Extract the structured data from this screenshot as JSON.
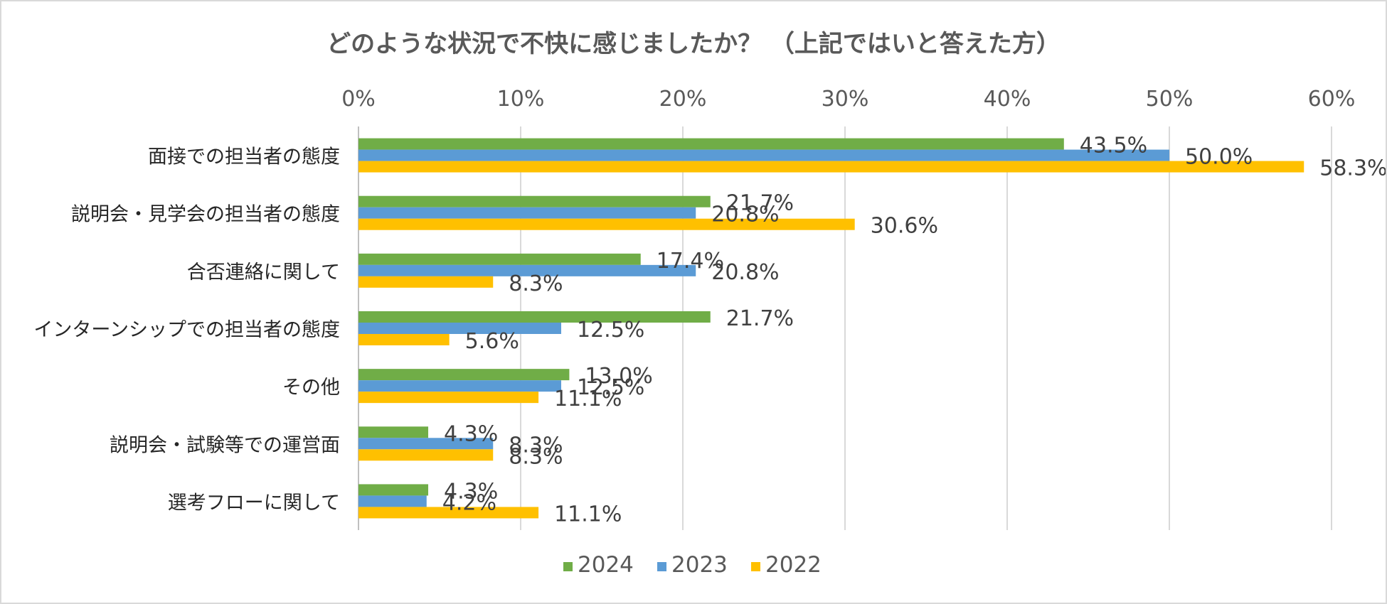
{
  "chart_data": {
    "type": "bar",
    "orientation": "horizontal",
    "title": "どのような状況で不快に感じましたか？ （上記ではいと答えた方）",
    "categories": [
      "面接での担当者の態度",
      "説明会・見学会の担当者の態度",
      "合否連絡に関して",
      "インターンシップでの担当者の態度",
      "その他",
      "説明会・試験等での運営面",
      "選考フローに関して"
    ],
    "series": [
      {
        "name": "2024",
        "color": "#70ad47",
        "values": [
          43.5,
          21.7,
          17.4,
          21.7,
          13.0,
          4.3,
          4.3
        ]
      },
      {
        "name": "2023",
        "color": "#5b9bd5",
        "values": [
          50.0,
          20.8,
          20.8,
          12.5,
          12.5,
          8.3,
          4.2
        ]
      },
      {
        "name": "2022",
        "color": "#ffc000",
        "values": [
          58.3,
          30.6,
          8.3,
          5.6,
          11.1,
          8.3,
          11.1
        ]
      }
    ],
    "xlim": [
      0,
      60
    ],
    "x_ticks": [
      0,
      10,
      20,
      30,
      40,
      50,
      60
    ],
    "tick_suffix": "%",
    "value_suffix": "%",
    "xaxis_position": "top",
    "grid": true,
    "legend_position": "bottom"
  }
}
